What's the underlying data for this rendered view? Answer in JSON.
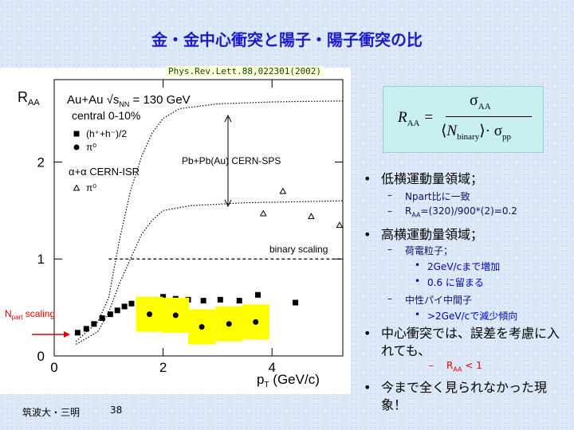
{
  "title": "金・金中心衝突と陽子・陽子衝突の比",
  "citation": "Phys.Rev.Lett.88,022301(2002)",
  "formula": {
    "lhs": "R",
    "lhs_sub": "AA",
    "num": "σ",
    "num_sub": "AA",
    "den_n": "N",
    "den_sub": "binary",
    "den_sigma": "σ",
    "den_sigma_sub": "pp"
  },
  "bullets": [
    {
      "level": 1,
      "parts": [
        {
          "t": "低横運動量領域；"
        }
      ]
    },
    {
      "level": 2,
      "parts": [
        {
          "t": "Npart比に一致"
        }
      ]
    },
    {
      "level": 2,
      "parts": [
        {
          "t": "R"
        },
        {
          "t": "AA",
          "sub": true
        },
        {
          "t": "=(320)/900*(2)=0.2"
        }
      ]
    },
    {
      "level": 1,
      "parts": [
        {
          "t": "高横運動量領域；"
        }
      ]
    },
    {
      "level": 2,
      "parts": [
        {
          "t": "荷電粒子；"
        }
      ]
    },
    {
      "level": 3,
      "parts": [
        {
          "t": "2GeV/cまで増加"
        }
      ]
    },
    {
      "level": 3,
      "parts": [
        {
          "t": "0.6 に留まる"
        }
      ]
    },
    {
      "level": 2,
      "parts": [
        {
          "t": "中性パイ中間子"
        }
      ]
    },
    {
      "level": 3,
      "parts": [
        {
          "t": ">2GeV/cで減少傾向"
        }
      ]
    },
    {
      "level": 1,
      "parts": [
        {
          "t": "中心衝突では、誤差を考慮に入れても、"
        }
      ]
    },
    {
      "level": 2,
      "red": true,
      "parts": [
        {
          "t": "R"
        },
        {
          "t": "AA",
          "sub": true
        },
        {
          "t": " < 1"
        }
      ]
    },
    {
      "level": 1,
      "parts": [
        {
          "t": "今まで全く見られなかった現象！"
        }
      ]
    }
  ],
  "footer": {
    "author": "筑波大・三明",
    "page": 38
  },
  "chart_data": {
    "type": "scatter",
    "xlabel": {
      "main": "p",
      "sub": "T",
      "unit": " (GeV/c)"
    },
    "ylabel": {
      "main": "R",
      "sub": "AA"
    },
    "xlim": [
      0,
      5.3
    ],
    "ylim": [
      0,
      2.85
    ],
    "xticks": [
      0,
      2,
      4
    ],
    "yticks": [
      0,
      1,
      2
    ],
    "annotations": {
      "system": [
        "Au+Au √s",
        "NN",
        " = 130 GeV"
      ],
      "centrality": "central 0-10%",
      "isr": "α+α CERN-ISR",
      "sps": "Pb+Pb(Au) CERN-SPS",
      "npart": [
        "N",
        "part",
        " scaling"
      ]
    },
    "series": [
      {
        "name": "(h⁺+h⁻)/2",
        "marker": "square",
        "color": "#000000",
        "x": [
          0.43,
          0.59,
          0.73,
          0.88,
          1.03,
          1.16,
          1.29,
          1.42,
          1.57,
          1.72,
          1.86,
          2.0,
          2.23,
          2.46,
          2.74,
          3.05,
          3.4,
          3.74,
          4.43
        ],
        "values": [
          0.24,
          0.28,
          0.33,
          0.39,
          0.43,
          0.47,
          0.51,
          0.54,
          0.57,
          0.58,
          0.58,
          0.61,
          0.59,
          0.58,
          0.57,
          0.58,
          0.57,
          0.63,
          0.55
        ]
      },
      {
        "name": "π⁰",
        "marker": "circle",
        "color": "#000000",
        "band": "#ffff00",
        "x": [
          1.75,
          2.23,
          2.71,
          3.21,
          3.7
        ],
        "values": [
          0.43,
          0.42,
          0.3,
          0.33,
          0.35
        ]
      },
      {
        "name": "π⁰",
        "marker": "triangle",
        "color": "#000000",
        "x": [
          3.84,
          4.2,
          4.72,
          5.24
        ],
        "values": [
          1.47,
          1.7,
          1.44,
          1.35
        ]
      },
      {
        "marker": "dotline",
        "color": "#000000",
        "x": [
          0.4,
          0.8,
          1.0,
          1.2,
          1.4,
          1.6,
          1.8,
          2.0,
          2.3,
          3.0,
          4.0,
          5.3
        ],
        "values": [
          0.15,
          0.35,
          0.6,
          1.2,
          1.7,
          2.05,
          2.3,
          2.45,
          2.55,
          2.6,
          2.62,
          2.63
        ]
      },
      {
        "marker": "dotline",
        "color": "#000000",
        "x": [
          0.4,
          0.8,
          1.0,
          1.2,
          1.4,
          1.6,
          1.8,
          2.0,
          2.5,
          3.5,
          5.3
        ],
        "values": [
          0.12,
          0.25,
          0.45,
          0.75,
          1.0,
          1.25,
          1.4,
          1.5,
          1.55,
          1.58,
          1.6
        ]
      },
      {
        "name": "binary scaling",
        "marker": "dashline",
        "color": "#000000",
        "x": [
          1.0,
          5.3
        ],
        "values": [
          1,
          1
        ]
      }
    ]
  }
}
